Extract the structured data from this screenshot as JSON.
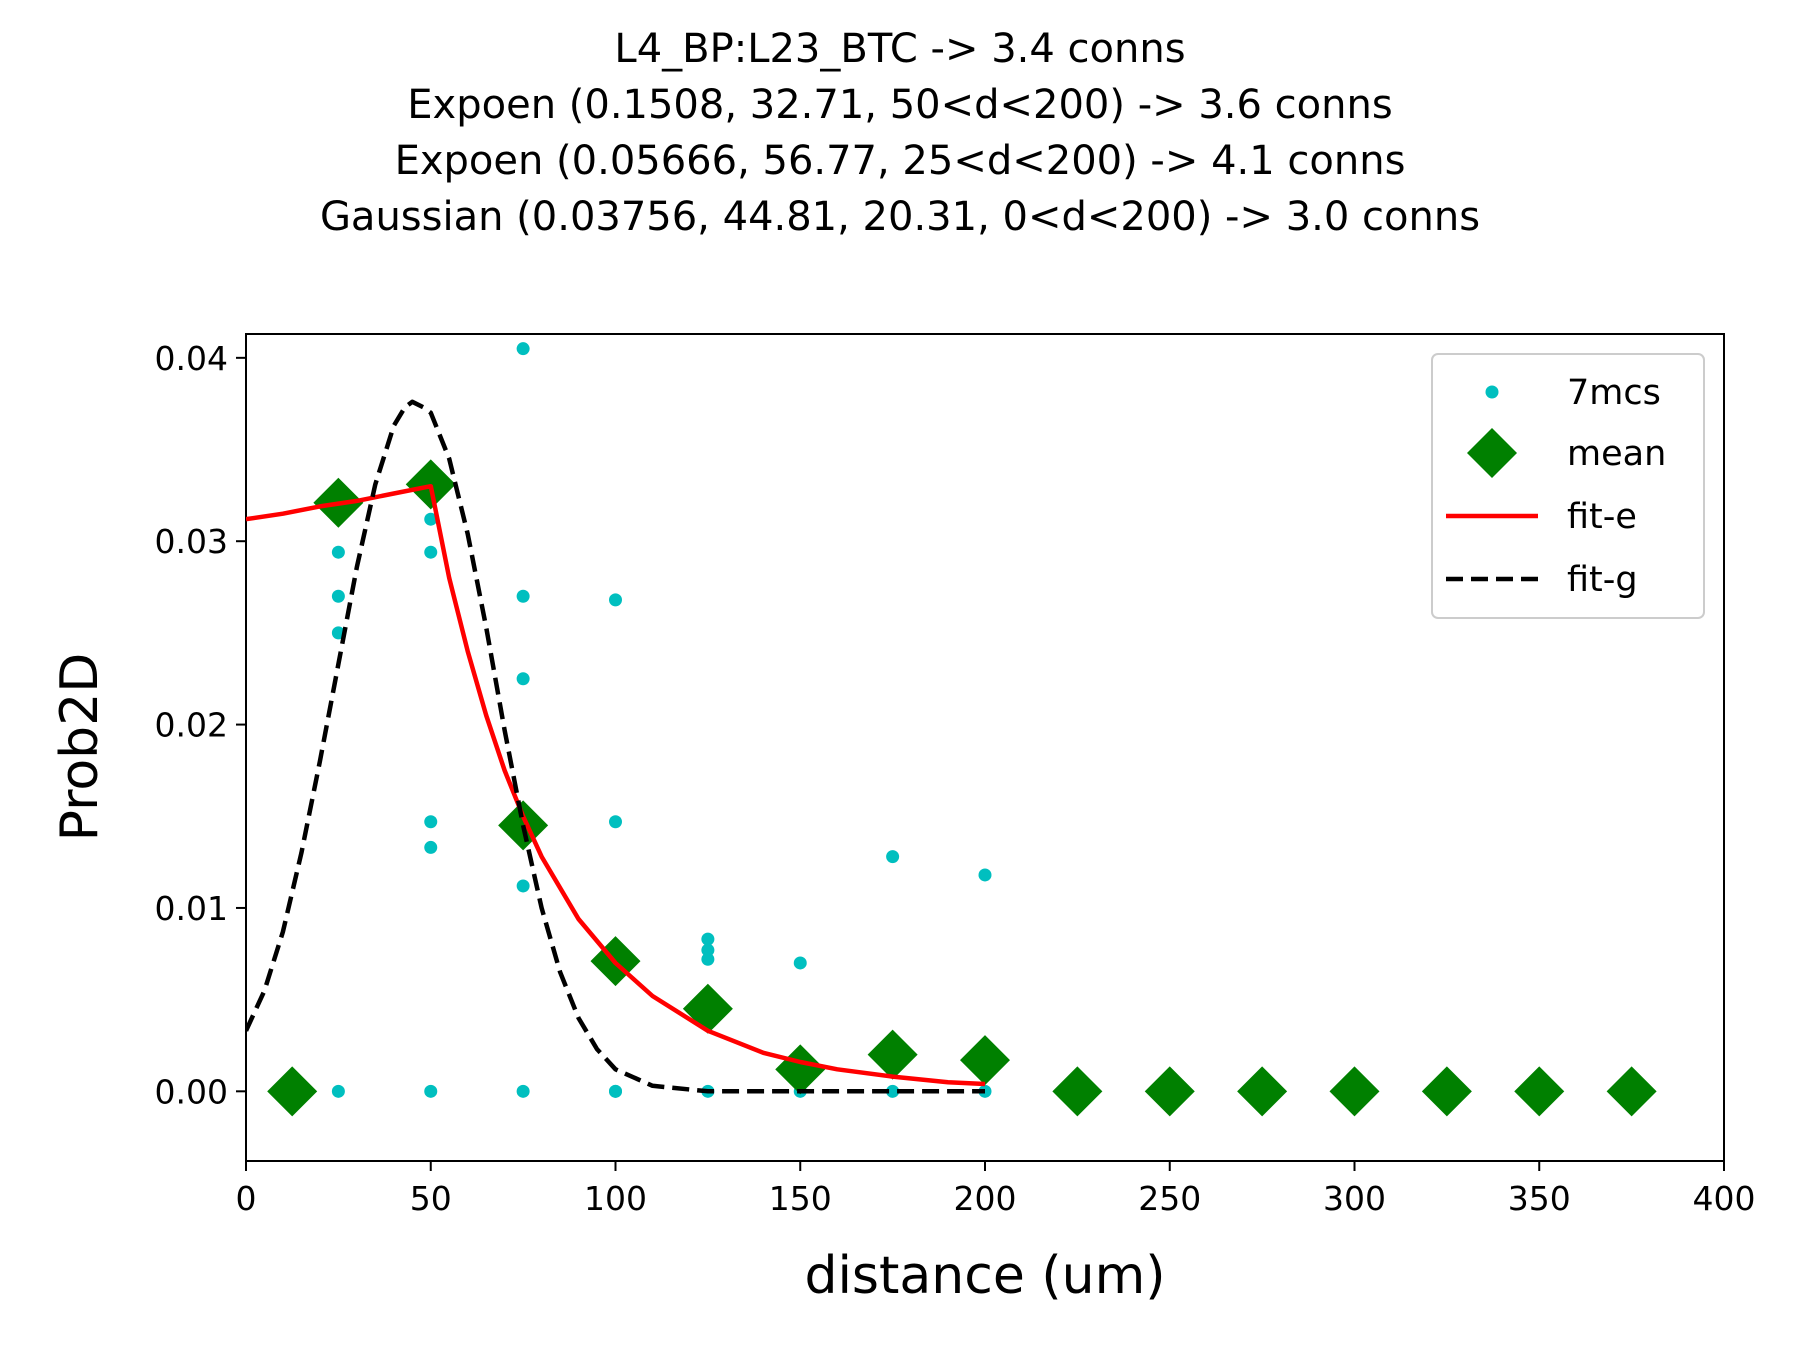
{
  "chart_data": {
    "type": "scatter",
    "title_lines": [
      "L4_BP:L23_BTC -> 3.4 conns",
      "Expoen (0.1508, 32.71, 50<d<200) -> 3.6 conns",
      "Expoen (0.05666, 56.77, 25<d<200) -> 4.1 conns",
      "Gaussian (0.03756, 44.81, 20.31, 0<d<200) -> 3.0 conns"
    ],
    "xlabel": "distance (um)",
    "ylabel": "Prob2D",
    "xlim": [
      0,
      400
    ],
    "ylim": [
      -0.0038,
      0.0413
    ],
    "xticks": [
      0,
      50,
      100,
      150,
      200,
      250,
      300,
      350,
      400
    ],
    "xtick_labels": [
      "0",
      "50",
      "100",
      "150",
      "200",
      "250",
      "300",
      "350",
      "400"
    ],
    "yticks": [
      0.0,
      0.01,
      0.02,
      0.03,
      0.04
    ],
    "ytick_labels": [
      "0.00",
      "0.01",
      "0.02",
      "0.03",
      "0.04"
    ],
    "grid": false,
    "legend_position": "top-right",
    "series": [
      {
        "name": "7mcs",
        "kind": "points",
        "color": "#00bfbf",
        "points": [
          [
            25,
            0.0294
          ],
          [
            25,
            0.027
          ],
          [
            25,
            0.025
          ],
          [
            25,
            0.0
          ],
          [
            50,
            0.0312
          ],
          [
            50,
            0.0294
          ],
          [
            50,
            0.0147
          ],
          [
            50,
            0.0133
          ],
          [
            50,
            0.0
          ],
          [
            75,
            0.0405
          ],
          [
            75,
            0.027
          ],
          [
            75,
            0.0225
          ],
          [
            75,
            0.0112
          ],
          [
            75,
            0.0
          ],
          [
            100,
            0.0268
          ],
          [
            100,
            0.0147
          ],
          [
            100,
            0.0
          ],
          [
            100,
            0.0
          ],
          [
            125,
            0.0083
          ],
          [
            125,
            0.0077
          ],
          [
            125,
            0.0072
          ],
          [
            125,
            0.0
          ],
          [
            150,
            0.007
          ],
          [
            150,
            0.0
          ],
          [
            175,
            0.0128
          ],
          [
            175,
            0.0
          ],
          [
            200,
            0.0118
          ],
          [
            200,
            0.0
          ]
        ]
      },
      {
        "name": "mean",
        "kind": "markers",
        "color": "#008000",
        "points": [
          [
            12.5,
            0.0
          ],
          [
            25,
            0.0321
          ],
          [
            50,
            0.0331
          ],
          [
            75,
            0.0145
          ],
          [
            100,
            0.0071
          ],
          [
            125,
            0.0045
          ],
          [
            150,
            0.0012
          ],
          [
            175,
            0.002
          ],
          [
            200,
            0.0017
          ],
          [
            225,
            0.0
          ],
          [
            250,
            0.0
          ],
          [
            275,
            0.0
          ],
          [
            300,
            0.0
          ],
          [
            325,
            0.0
          ],
          [
            350,
            0.0
          ],
          [
            375,
            0.0
          ]
        ]
      },
      {
        "name": "fit-e",
        "kind": "line",
        "color": "#ff0000",
        "points": [
          [
            0,
            0.0312
          ],
          [
            10,
            0.0315
          ],
          [
            20,
            0.0319
          ],
          [
            30,
            0.0322
          ],
          [
            40,
            0.0326
          ],
          [
            50,
            0.033
          ],
          [
            55,
            0.028
          ],
          [
            60,
            0.024
          ],
          [
            65,
            0.0205
          ],
          [
            70,
            0.0175
          ],
          [
            75,
            0.015
          ],
          [
            80,
            0.0128
          ],
          [
            90,
            0.0094
          ],
          [
            100,
            0.007
          ],
          [
            110,
            0.0052
          ],
          [
            125,
            0.0033
          ],
          [
            140,
            0.0021
          ],
          [
            150,
            0.0016
          ],
          [
            160,
            0.0012
          ],
          [
            175,
            0.0008
          ],
          [
            190,
            0.0005
          ],
          [
            200,
            0.0004
          ]
        ]
      },
      {
        "name": "fit-g",
        "kind": "dashed-line",
        "color": "#000000",
        "points": [
          [
            0,
            0.0033
          ],
          [
            5,
            0.0055
          ],
          [
            10,
            0.0087
          ],
          [
            15,
            0.013
          ],
          [
            20,
            0.018
          ],
          [
            25,
            0.0233
          ],
          [
            30,
            0.0286
          ],
          [
            35,
            0.0331
          ],
          [
            40,
            0.0363
          ],
          [
            43,
            0.0373
          ],
          [
            45,
            0.0376
          ],
          [
            48,
            0.0373
          ],
          [
            50,
            0.037
          ],
          [
            55,
            0.0345
          ],
          [
            60,
            0.0304
          ],
          [
            65,
            0.0253
          ],
          [
            70,
            0.0197
          ],
          [
            75,
            0.0145
          ],
          [
            80,
            0.01
          ],
          [
            85,
            0.0065
          ],
          [
            90,
            0.004
          ],
          [
            95,
            0.0023
          ],
          [
            100,
            0.0012
          ],
          [
            110,
            0.0003
          ],
          [
            125,
            0.0
          ],
          [
            150,
            0.0
          ],
          [
            175,
            0.0
          ],
          [
            200,
            0.0
          ]
        ]
      }
    ]
  }
}
